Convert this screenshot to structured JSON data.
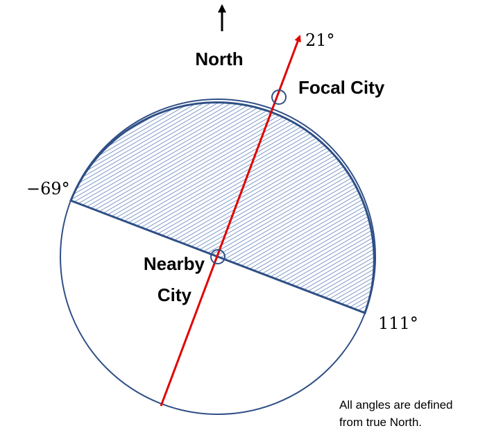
{
  "direction_label": "North",
  "angles": {
    "focal_bearing": "21°",
    "left_end": "−69°",
    "right_end": "111°"
  },
  "cities": {
    "focal": "Focal City",
    "nearby_line1": "Nearby",
    "nearby_line2": "City"
  },
  "note": {
    "line1": "All angles are defined",
    "line2": "from true North."
  }
}
